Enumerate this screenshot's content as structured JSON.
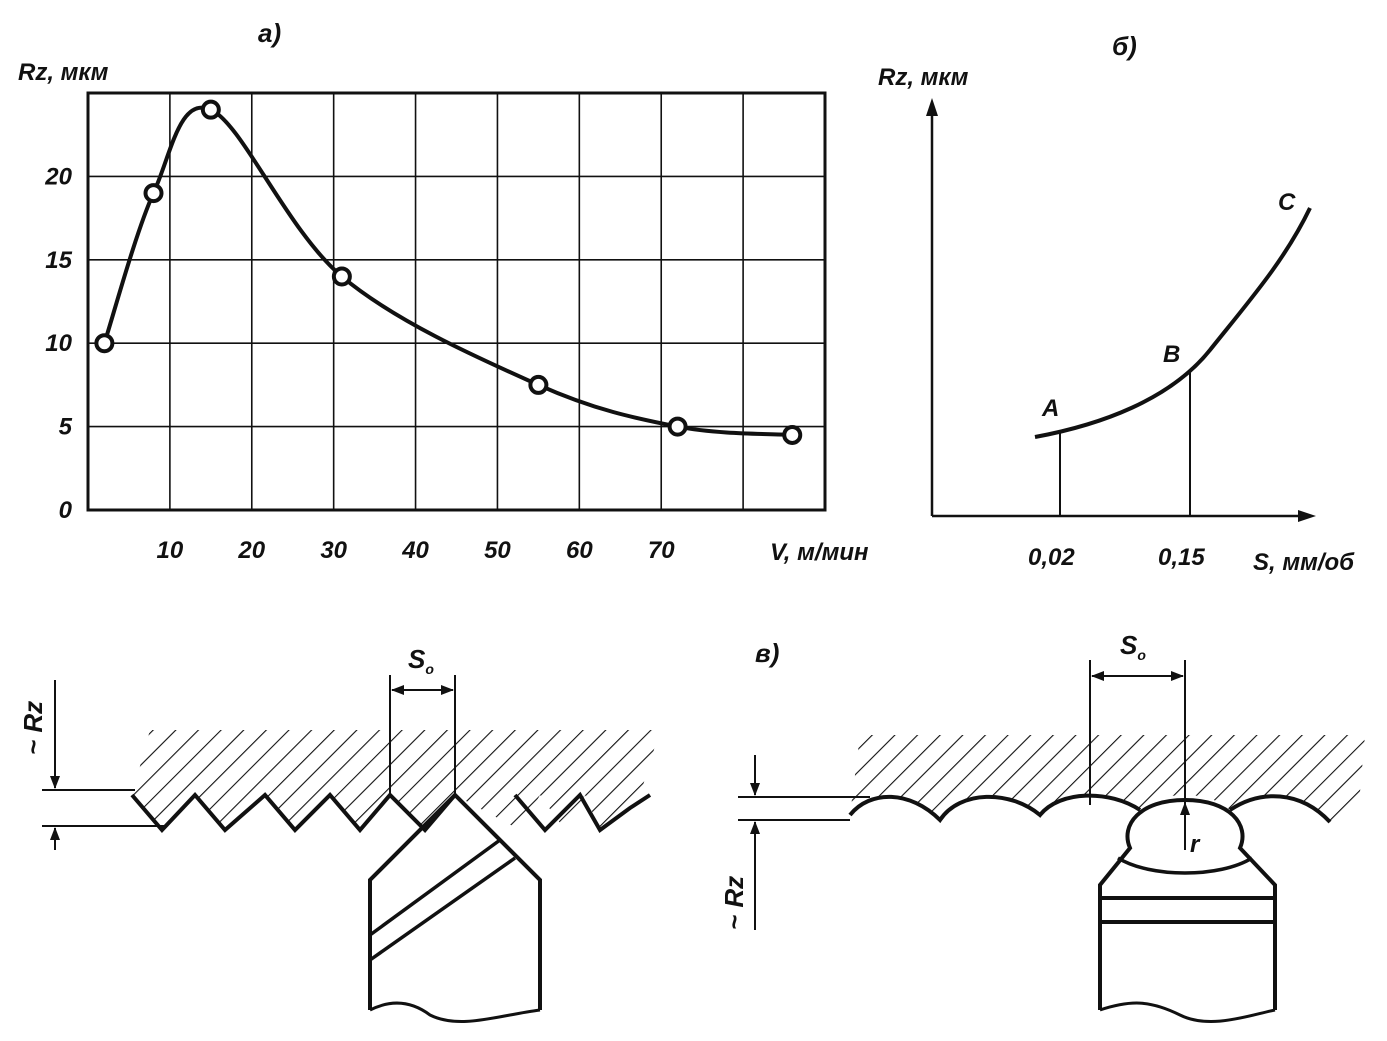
{
  "panel_a": {
    "label": "а)",
    "y_axis_title": "Rz, мкм",
    "x_axis_title": "V, м/мин",
    "y_ticks": [
      "0",
      "5",
      "10",
      "15",
      "20"
    ],
    "x_ticks": [
      "10",
      "20",
      "30",
      "40",
      "50",
      "60",
      "70"
    ]
  },
  "panel_b": {
    "label": "б)",
    "y_axis_title": "Rz, мкм",
    "x_axis_title": "S, мм/об",
    "x_ticks": [
      "0,02",
      "0,15"
    ],
    "points": [
      "A",
      "B",
      "C"
    ]
  },
  "panel_c": {
    "label": "в)",
    "feed_label": "S",
    "feed_sub": "o",
    "rz_label": "~ Rz",
    "radius_label": "r"
  },
  "chart_data": [
    {
      "type": "line",
      "title": "а)",
      "xlabel": "V, м/мин",
      "ylabel": "Rz, мкм",
      "x": [
        2,
        8,
        15,
        31,
        55,
        72,
        86
      ],
      "y": [
        10,
        19,
        24,
        14,
        7.5,
        5,
        4.5
      ],
      "xlim": [
        0,
        90
      ],
      "ylim": [
        0,
        25
      ],
      "grid": true
    },
    {
      "type": "line",
      "title": "б)",
      "xlabel": "S, мм/об",
      "ylabel": "Rz, мкм",
      "categories": [
        "A",
        "B",
        "C"
      ],
      "x_ticks": [
        "0,02",
        "0,15"
      ]
    }
  ]
}
